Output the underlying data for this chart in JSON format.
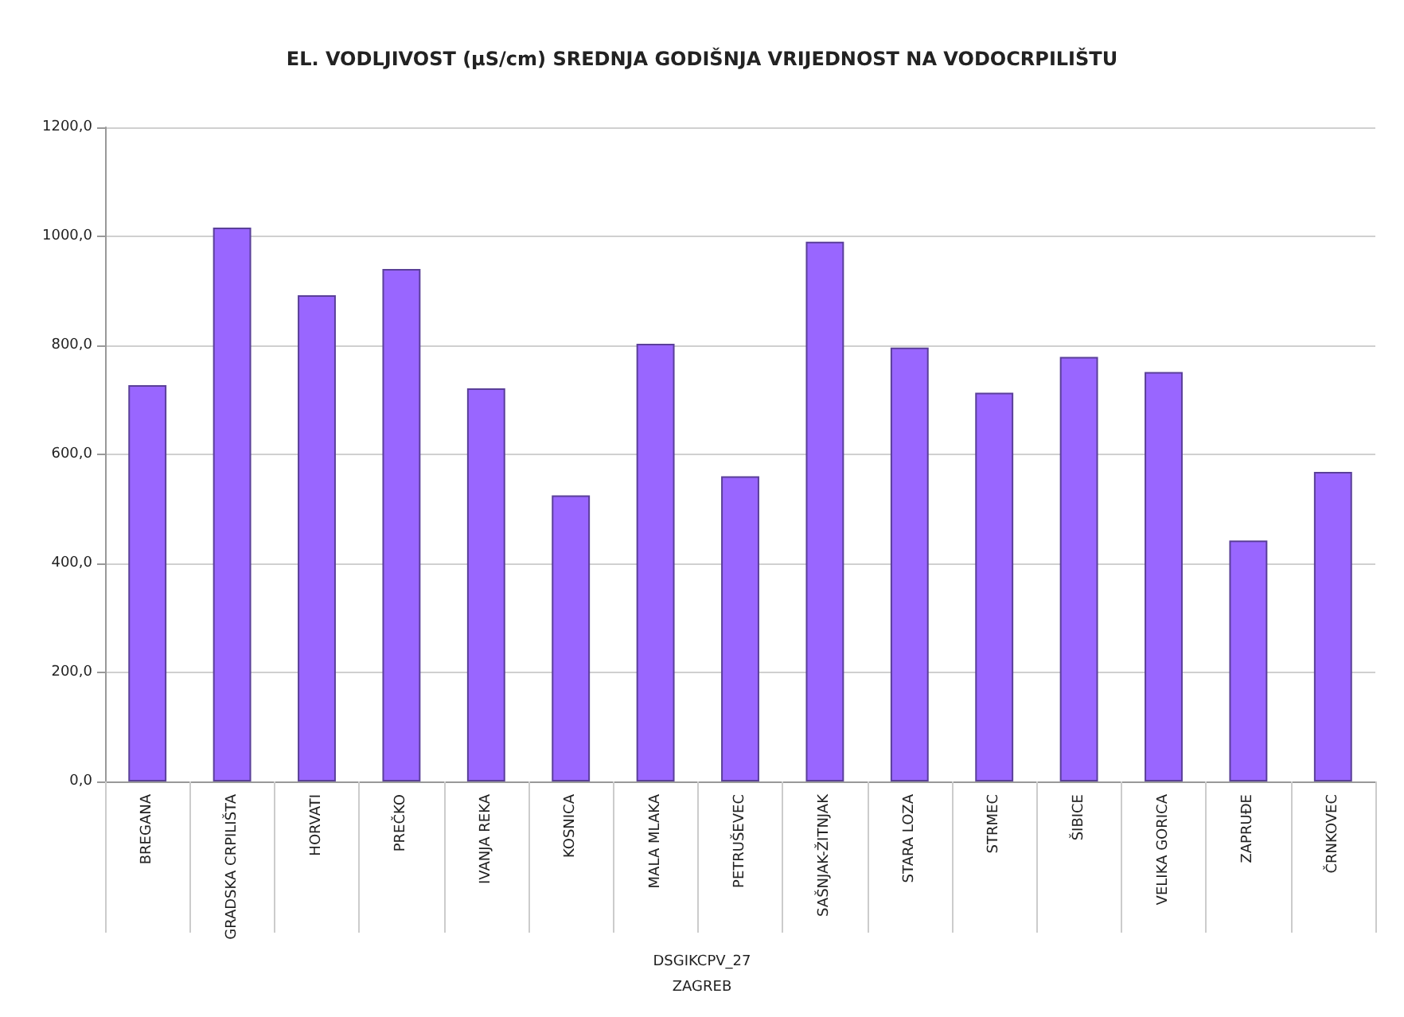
{
  "chart_data": {
    "type": "bar",
    "title": "EL. VODLJIVOST (µS/cm) SREDNJA GODIŠNJA VRIJEDNOST NA VODOCRPILIŠTU",
    "categories": [
      "BREGANA",
      "GRADSKA CRPILIŠTA",
      "HORVATI",
      "PREČKO",
      "IVANJA REKA",
      "KOSNICA",
      "MALA MLAKA",
      "PETRUŠEVEC",
      "SAŠNJAK-ŽITNJAK",
      "STARA LOZA",
      "STRMEC",
      "ŠIBICE",
      "VELIKA GORICA",
      "ZAPRUĐE",
      "ČRNKOVEC"
    ],
    "values": [
      727,
      1016,
      892,
      940,
      721,
      525,
      803,
      560,
      990,
      796,
      713,
      779,
      751,
      442,
      568
    ],
    "color": "#9966ff",
    "ylim": [
      0,
      1200
    ],
    "yticks": [
      {
        "value": 0,
        "label": "0,0"
      },
      {
        "value": 200,
        "label": "200,0"
      },
      {
        "value": 400,
        "label": "400,0"
      },
      {
        "value": 600,
        "label": "600,0"
      },
      {
        "value": 800,
        "label": "800,0"
      },
      {
        "value": 1000,
        "label": "1000,0"
      },
      {
        "value": 1200,
        "label": "1200,0"
      }
    ],
    "grid": "y",
    "annotations": [
      "DSGIKCPV_27",
      "ZAGREB"
    ]
  }
}
